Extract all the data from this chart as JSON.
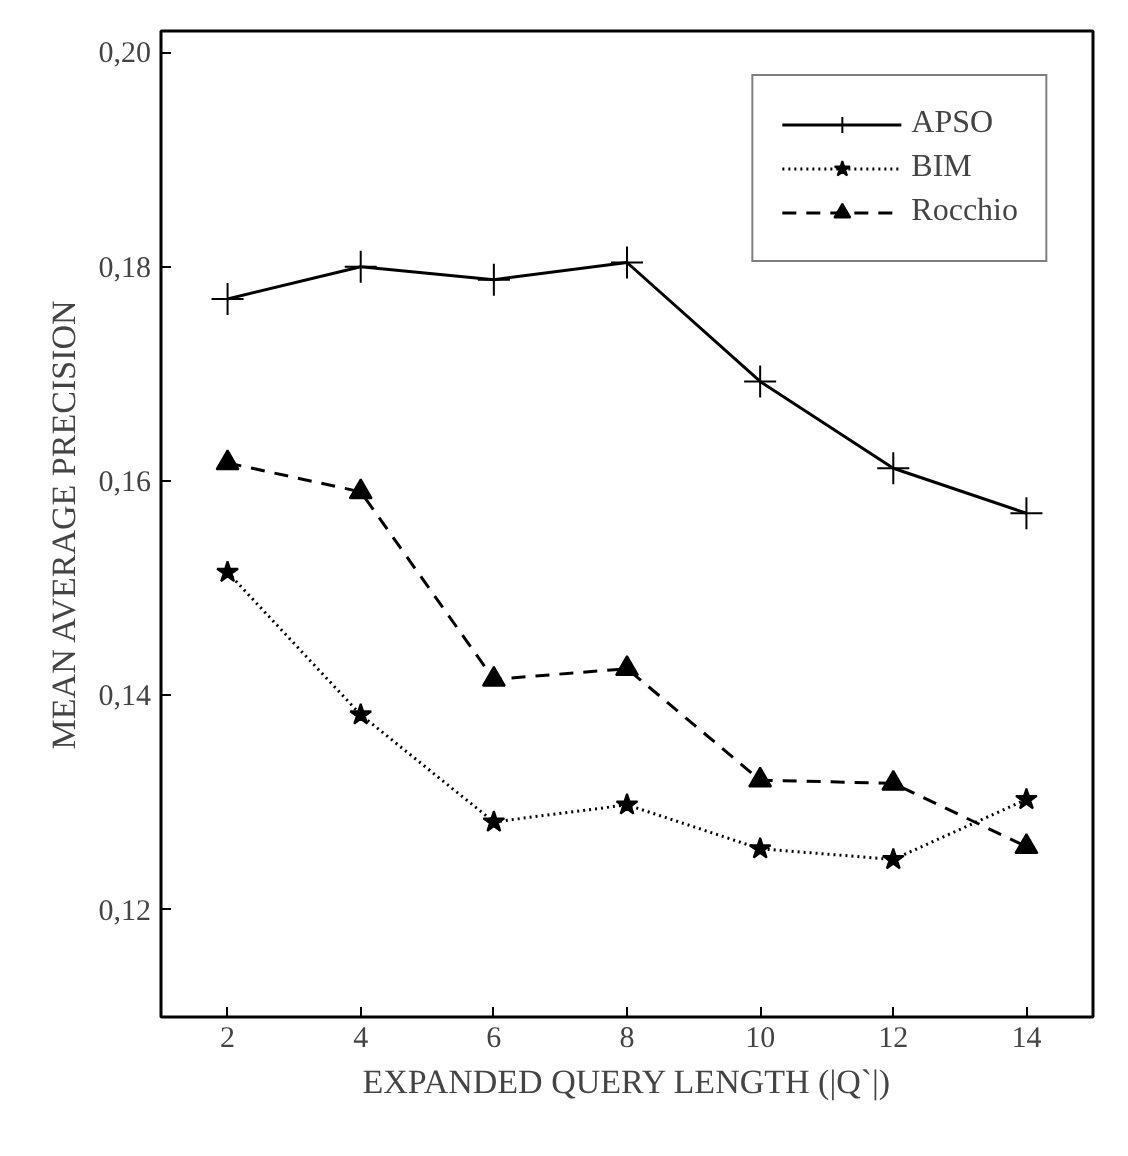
{
  "chart_data": {
    "type": "line",
    "xlabel": "EXPANDED QUERY LENGTH (|Q`|)",
    "ylabel": "MEAN AVERAGE PRECISION",
    "x": [
      2,
      4,
      6,
      8,
      10,
      12,
      14
    ],
    "series": [
      {
        "name": "APSO",
        "color": "#000000",
        "marker": "cross",
        "line_style": "solid",
        "values": [
          0.177,
          0.18,
          0.1788,
          0.1804,
          0.1693,
          0.1612,
          0.157
        ]
      },
      {
        "name": "BIM",
        "color": "#000000",
        "marker": "star",
        "line_style": "dotted",
        "values": [
          0.1515,
          0.1382,
          0.1282,
          0.1298,
          0.1257,
          0.1247,
          0.1303
        ]
      },
      {
        "name": "Rocchio",
        "color": "#000000",
        "marker": "triangle",
        "line_style": "dashed",
        "values": [
          0.1617,
          0.159,
          0.1415,
          0.1425,
          0.1321,
          0.1318,
          0.1259
        ]
      }
    ],
    "xlim": [
      1,
      15
    ],
    "ylim": [
      0.11,
      0.202
    ],
    "xticks": [
      2,
      4,
      6,
      8,
      10,
      12,
      14
    ],
    "yticks": [
      {
        "value": 0.12,
        "label": "0,12"
      },
      {
        "value": 0.14,
        "label": "0,14"
      },
      {
        "value": 0.16,
        "label": "0,16"
      },
      {
        "value": 0.18,
        "label": "0,18"
      },
      {
        "value": 0.2,
        "label": "0,20"
      }
    ],
    "grid": false,
    "legend": "top right"
  }
}
